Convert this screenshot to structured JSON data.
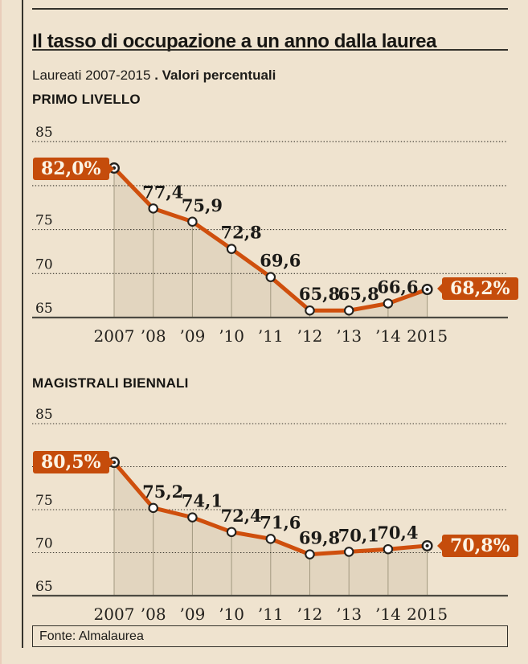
{
  "header": {
    "title": "Il tasso di occupazione a un anno dalla laurea",
    "subtitle_regular": "Laureati 2007-2015",
    "subtitle_separator": " . ",
    "subtitle_bold": "Valori percentuali"
  },
  "footer": {
    "source": "Fonte: Almalaurea"
  },
  "colors": {
    "background": "#efe3cf",
    "accent_orange": "#c54c0b",
    "line_orange": "#cf4f0d",
    "area_fill": "#e2d5bf",
    "grid_dark": "#37342c",
    "baseline_dark": "#4c4a42",
    "drop_line": "#a2987f",
    "text_dark": "#1b1a17",
    "badge_text": "#fcf4e5"
  },
  "chart_data": [
    {
      "type": "line",
      "section_label": "PRIMO LIVELLO",
      "x": [
        "2007",
        "’08",
        "’09",
        "’10",
        "’11",
        "’12",
        "’13",
        "’14",
        "2015"
      ],
      "values": [
        82.0,
        77.4,
        75.9,
        72.8,
        69.6,
        65.8,
        65.8,
        66.6,
        68.2
      ],
      "point_labels": [
        "82,0%",
        "77,4",
        "75,9",
        "72,8",
        "69,6",
        "65,8",
        "65,8",
        "66,6",
        "68,2%"
      ],
      "start_badge": "82,0%",
      "end_badge": "68,2%",
      "ylim": [
        65,
        85
      ],
      "yticks": [
        85,
        75,
        70,
        65
      ],
      "gridlines": [
        85,
        80,
        75,
        70
      ],
      "grid_style": "dotted",
      "legend": "none",
      "area_under_curve": true
    },
    {
      "type": "line",
      "section_label": "MAGISTRALI BIENNALI",
      "x": [
        "2007",
        "’08",
        "’09",
        "’10",
        "’11",
        "’12",
        "’13",
        "’14",
        "2015"
      ],
      "values": [
        80.5,
        75.2,
        74.1,
        72.4,
        71.6,
        69.8,
        70.1,
        70.4,
        70.8
      ],
      "point_labels": [
        "80,5%",
        "75,2",
        "74,1",
        "72,4",
        "71,6",
        "69,8",
        "70,1",
        "70,4",
        "70,8%"
      ],
      "start_badge": "80,5%",
      "end_badge": "70,8%",
      "ylim": [
        65,
        85
      ],
      "yticks": [
        85,
        75,
        70,
        65
      ],
      "gridlines": [
        85,
        80,
        75,
        70
      ],
      "grid_style": "dotted",
      "legend": "none",
      "area_under_curve": true
    }
  ]
}
